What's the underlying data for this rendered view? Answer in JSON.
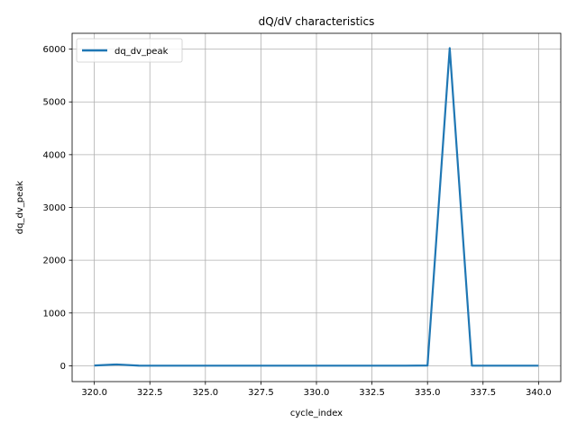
{
  "chart_data": {
    "type": "line",
    "title": "dQ/dV characteristics",
    "xlabel": "cycle_index",
    "ylabel": "dq_dv_peak",
    "xlim": [
      319.0,
      341.0
    ],
    "ylim": [
      -300,
      6300
    ],
    "xticks": [
      320.0,
      322.5,
      325.0,
      327.5,
      330.0,
      332.5,
      335.0,
      337.5,
      340.0
    ],
    "xtick_labels": [
      "320.0",
      "322.5",
      "325.0",
      "327.5",
      "330.0",
      "332.5",
      "335.0",
      "337.5",
      "340.0"
    ],
    "yticks": [
      0,
      1000,
      2000,
      3000,
      4000,
      5000,
      6000
    ],
    "ytick_labels": [
      "0",
      "1000",
      "2000",
      "3000",
      "4000",
      "5000",
      "6000"
    ],
    "grid": true,
    "legend_position": "top-left",
    "series": [
      {
        "name": "dq_dv_peak",
        "color": "#1f77b4",
        "x": [
          320,
          321,
          322,
          323,
          324,
          325,
          326,
          327,
          328,
          329,
          330,
          331,
          332,
          333,
          334,
          335,
          336,
          337,
          338,
          339,
          340
        ],
        "y": [
          5,
          25,
          3,
          2,
          2,
          2,
          2,
          2,
          2,
          2,
          2,
          2,
          2,
          2,
          2,
          5,
          6020,
          2,
          2,
          2,
          2
        ]
      }
    ]
  }
}
